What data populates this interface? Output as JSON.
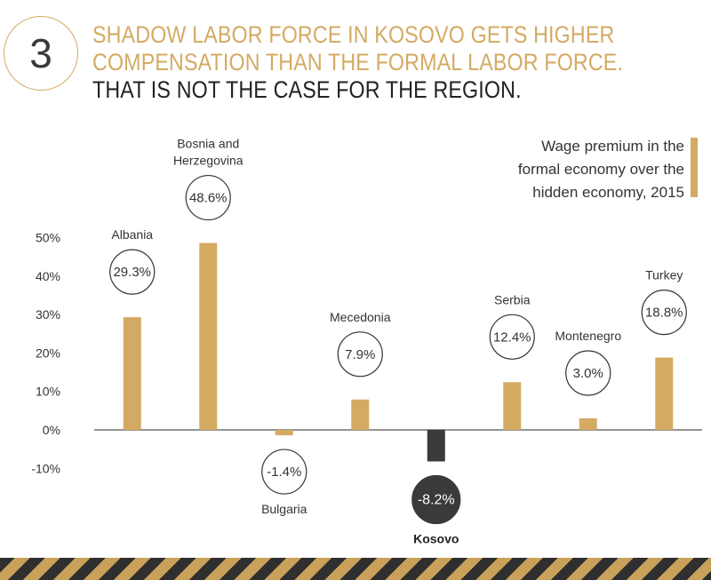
{
  "header": {
    "number": "3",
    "title_line1": "SHADOW LABOR FORCE IN KOSOVO GETS HIGHER",
    "title_line2": "COMPENSATION THAN THE FORMAL LABOR FORCE.",
    "title_line3": "THAT IS NOT THE CASE FOR THE REGION."
  },
  "legend": {
    "line1": "Wage premium in the",
    "line2": "formal economy over the",
    "line3": "hidden economy, 2015"
  },
  "colors": {
    "bar": "#d4aa62",
    "highlight_bar": "#3a3a3a",
    "axis": "#555555",
    "text": "#333333"
  },
  "chart_data": {
    "type": "bar",
    "categories": [
      "Albania",
      "Bosnia and Herzegovina",
      "Bulgaria",
      "Mecedonia",
      "Kosovo",
      "Serbia",
      "Montenegro",
      "Turkey"
    ],
    "values": [
      29.3,
      48.6,
      -1.4,
      7.9,
      -8.2,
      12.4,
      3.0,
      18.8
    ],
    "value_labels": [
      "29.3%",
      "48.6%",
      "-1.4%",
      "7.9%",
      "-8.2%",
      "12.4%",
      "3.0%",
      "18.8%"
    ],
    "highlight": "Kosovo",
    "yticks": [
      "50%",
      "40%",
      "30%",
      "20%",
      "10%",
      "0%",
      "-10%"
    ],
    "ytick_values": [
      50,
      40,
      30,
      20,
      10,
      0,
      -10
    ],
    "ylim": [
      -10,
      50
    ],
    "grid": false,
    "legend_position": "top-right"
  }
}
